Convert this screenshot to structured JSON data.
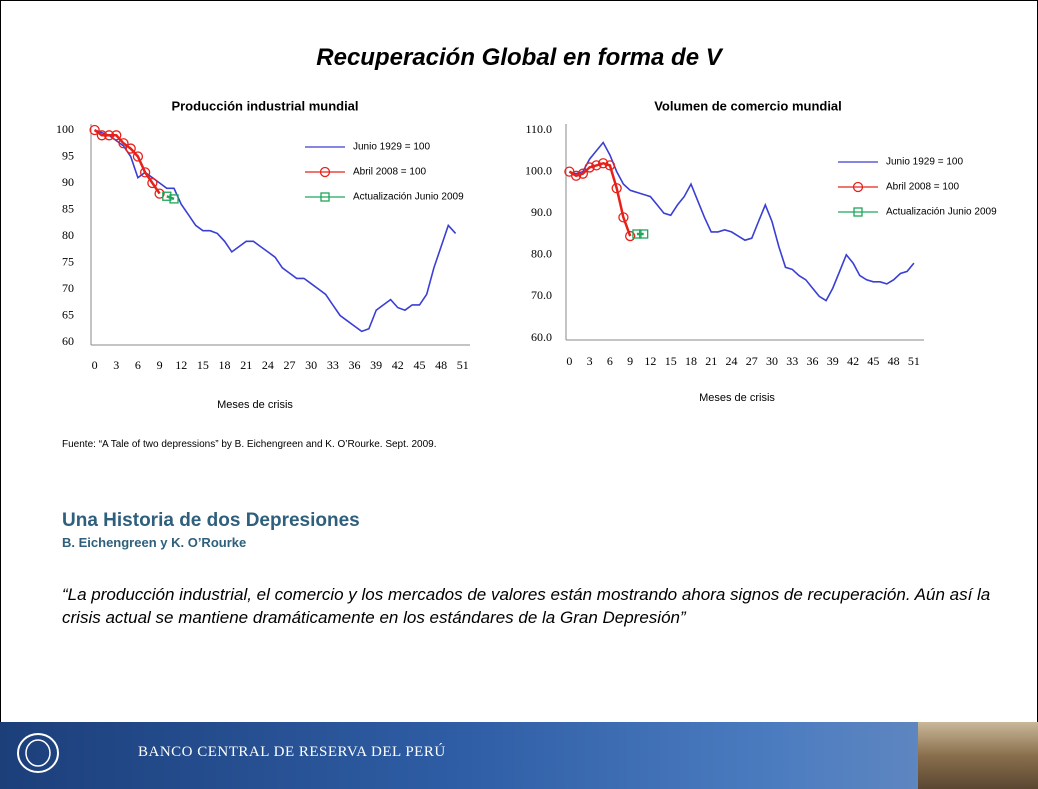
{
  "slide": {
    "title": "Recuperación Global en forma de V",
    "source": "Fuente: “A Tale of two depressions” by B. Eichengreen and K. O’Rourke. Sept. 2009.",
    "heading": "Una Historia de dos Depresiones",
    "subheading": "B. Eichengreen y K. O’Rourke",
    "quote": "“La producción industrial, el comercio y los mercados de valores están mostrando ahora signos de recuperación. Aún así la crisis actual se mantiene dramáticamente en los estándares de la Gran Depresión”",
    "footer": "BANCO CENTRAL DE RESERVA DEL PERÚ"
  },
  "chart_data": [
    {
      "type": "line",
      "title": "Producción industrial mundial",
      "x_label": "Meses de crisis",
      "x": [
        0,
        1,
        2,
        3,
        4,
        5,
        6,
        7,
        8,
        9,
        10,
        11,
        12,
        13,
        14,
        15,
        16,
        17,
        18,
        19,
        20,
        21,
        22,
        23,
        24,
        25,
        26,
        27,
        28,
        29,
        30,
        31,
        32,
        33,
        34,
        35,
        36,
        37,
        38,
        39,
        40,
        41,
        42,
        43,
        44,
        45,
        46,
        47,
        48,
        49,
        50,
        51
      ],
      "xlim": [
        -0.5,
        52
      ],
      "xticks": [
        0,
        3,
        6,
        9,
        12,
        15,
        18,
        21,
        24,
        27,
        30,
        33,
        36,
        39,
        42,
        45,
        48,
        51
      ],
      "ylim": [
        60,
        100
      ],
      "yticks": [
        60,
        65,
        70,
        75,
        80,
        85,
        90,
        95,
        100
      ],
      "series": [
        {
          "name": "Junio 1929 = 100",
          "color": "#3a3fd4",
          "values": [
            100,
            99.5,
            99,
            98,
            97,
            95,
            91,
            92,
            91,
            90,
            89,
            89,
            86,
            84,
            82,
            81,
            81,
            80.5,
            79,
            77,
            78,
            79,
            79,
            78,
            77,
            76,
            74,
            73,
            72,
            72,
            71,
            70,
            69,
            67,
            65,
            64,
            63,
            62,
            62.5,
            66,
            67,
            68,
            66.5,
            66,
            67,
            67,
            69,
            74,
            78,
            82,
            80.5,
            null
          ]
        },
        {
          "name": "Abril 2008 = 100",
          "color": "#e8201a",
          "marker": "circle",
          "values": [
            100,
            99,
            99,
            99,
            97.5,
            96.5,
            95,
            92,
            90,
            88,
            null,
            null,
            null,
            null,
            null,
            null,
            null,
            null,
            null,
            null,
            null,
            null,
            null,
            null,
            null,
            null,
            null,
            null,
            null,
            null,
            null,
            null,
            null,
            null,
            null,
            null,
            null,
            null,
            null,
            null,
            null,
            null,
            null,
            null,
            null,
            null,
            null,
            null,
            null,
            null,
            null,
            null
          ]
        },
        {
          "name": "Actualización Junio 2009",
          "color": "#1fa65a",
          "marker": "square",
          "values": [
            null,
            null,
            null,
            null,
            null,
            null,
            null,
            null,
            null,
            null,
            87.5,
            87,
            null,
            null,
            null,
            null,
            null,
            null,
            null,
            null,
            null,
            null,
            null,
            null,
            null,
            null,
            null,
            null,
            null,
            null,
            null,
            null,
            null,
            null,
            null,
            null,
            null,
            null,
            null,
            null,
            null,
            null,
            null,
            null,
            null,
            null,
            null,
            null,
            null,
            null,
            null,
            null
          ]
        }
      ]
    },
    {
      "type": "line",
      "title": "Volumen de comercio mundial",
      "x_label": "Meses de crisis",
      "x": [
        0,
        1,
        2,
        3,
        4,
        5,
        6,
        7,
        8,
        9,
        10,
        11,
        12,
        13,
        14,
        15,
        16,
        17,
        18,
        19,
        20,
        21,
        22,
        23,
        24,
        25,
        26,
        27,
        28,
        29,
        30,
        31,
        32,
        33,
        34,
        35,
        36,
        37,
        38,
        39,
        40,
        41,
        42,
        43,
        44,
        45,
        46,
        47,
        48,
        49,
        50,
        51
      ],
      "xlim": [
        -0.5,
        52.5
      ],
      "xticks": [
        0,
        3,
        6,
        9,
        12,
        15,
        18,
        21,
        24,
        27,
        30,
        33,
        36,
        39,
        42,
        45,
        48,
        51
      ],
      "ylim": [
        60,
        110
      ],
      "yticks": [
        {
          "value": 60,
          "label": "60.0"
        },
        {
          "value": 70,
          "label": "70.0"
        },
        {
          "value": 80,
          "label": "80.0"
        },
        {
          "value": 90,
          "label": "90.0"
        },
        {
          "value": 100,
          "label": "100.0"
        },
        {
          "value": 110,
          "label": "110.0"
        }
      ],
      "series": [
        {
          "name": "Junio 1929 = 100",
          "color": "#3a3fd4",
          "values": [
            100,
            99.5,
            100,
            103,
            105,
            107,
            104,
            100,
            97,
            95.5,
            95,
            94.5,
            94,
            92,
            90,
            89.5,
            92,
            94,
            97,
            93,
            89,
            85.5,
            85.5,
            86,
            85.5,
            84.5,
            83.5,
            84,
            88,
            92,
            88,
            82,
            77,
            76.5,
            75,
            74,
            72,
            70,
            69,
            72,
            76,
            80,
            78,
            75,
            74,
            73.5,
            73.5,
            73,
            74,
            75.5,
            76,
            78
          ]
        },
        {
          "name": "Abril 2008 = 100",
          "color": "#e8201a",
          "marker": "circle",
          "values": [
            100,
            99,
            99.5,
            101,
            101.5,
            102,
            101.5,
            96,
            89,
            84.5,
            null,
            null,
            null,
            null,
            null,
            null,
            null,
            null,
            null,
            null,
            null,
            null,
            null,
            null,
            null,
            null,
            null,
            null,
            null,
            null,
            null,
            null,
            null,
            null,
            null,
            null,
            null,
            null,
            null,
            null,
            null,
            null,
            null,
            null,
            null,
            null,
            null,
            null,
            null,
            null,
            null,
            null
          ]
        },
        {
          "name": "Actualización Junio 2009",
          "color": "#1fa65a",
          "marker": "square",
          "values": [
            null,
            null,
            null,
            null,
            null,
            null,
            null,
            null,
            null,
            null,
            85,
            85,
            null,
            null,
            null,
            null,
            null,
            null,
            null,
            null,
            null,
            null,
            null,
            null,
            null,
            null,
            null,
            null,
            null,
            null,
            null,
            null,
            null,
            null,
            null,
            null,
            null,
            null,
            null,
            null,
            null,
            null,
            null,
            null,
            null,
            null,
            null,
            null,
            null,
            null,
            null,
            null
          ]
        }
      ]
    }
  ]
}
